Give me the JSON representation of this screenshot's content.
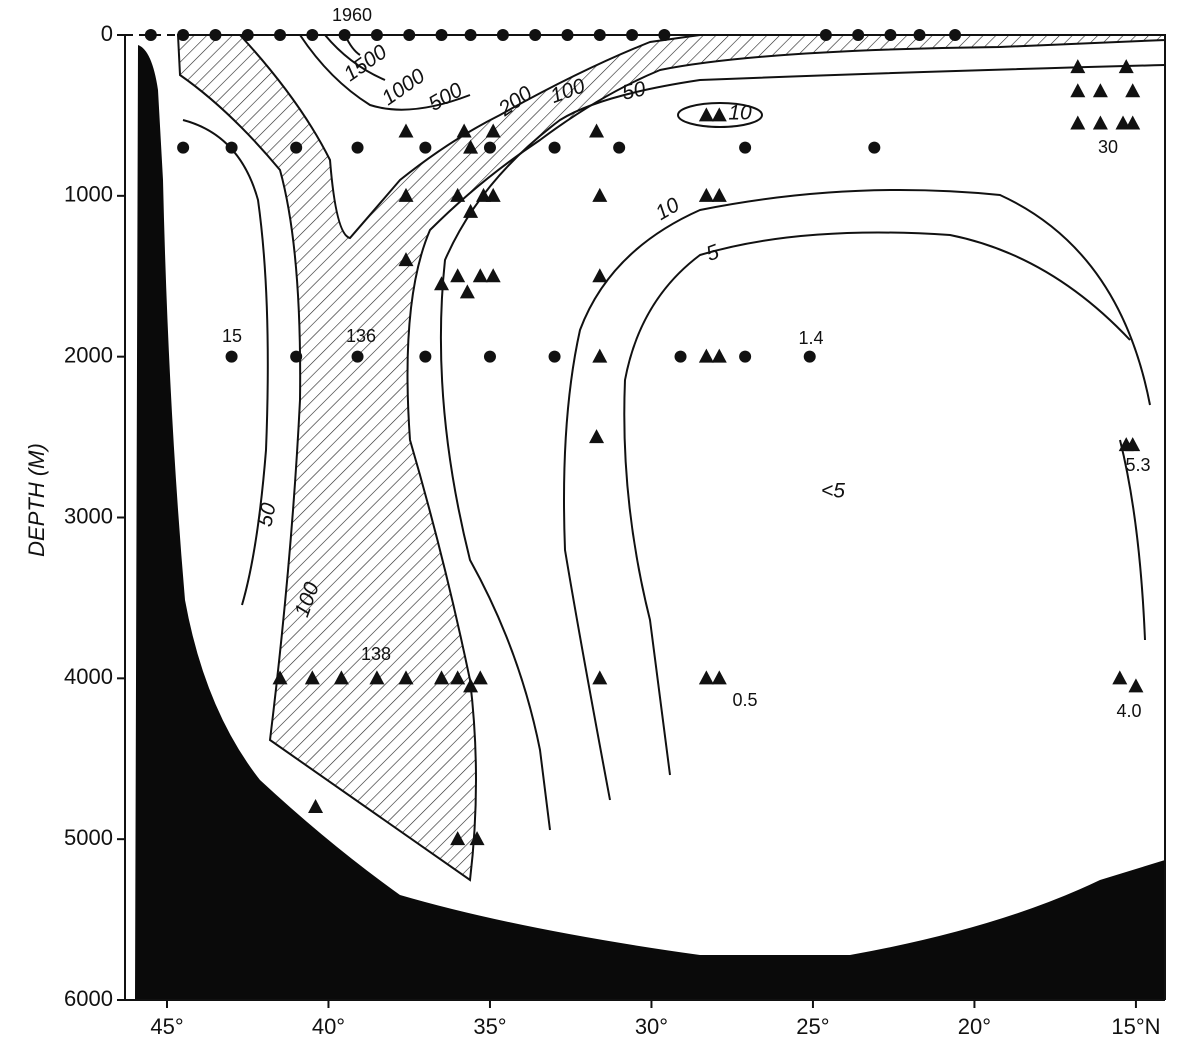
{
  "chart_data": {
    "type": "scatter",
    "y_label": "DEPTH (M)",
    "xlim": [
      46.3,
      14.1
    ],
    "ylim": [
      0,
      6000
    ],
    "invert_y": true,
    "xticks": [
      {
        "value": 45,
        "label": "45°"
      },
      {
        "value": 40,
        "label": "40°"
      },
      {
        "value": 35,
        "label": "35°"
      },
      {
        "value": 30,
        "label": "30°"
      },
      {
        "value": 25,
        "label": "25°"
      },
      {
        "value": 20,
        "label": "20°"
      },
      {
        "value": 15,
        "label": "15°N"
      }
    ],
    "yticks": [
      0,
      1000,
      2000,
      3000,
      4000,
      5000,
      6000
    ],
    "series": [
      {
        "marker": "circle",
        "color": "#111111",
        "x": [
          45.5,
          44.5,
          43.5,
          42.5,
          41.5,
          40.5,
          39.5,
          38.5,
          37.5,
          36.5,
          35.6,
          34.6,
          33.6,
          32.6,
          31.6,
          30.6,
          29.6,
          24.6,
          23.6,
          22.6,
          21.7,
          20.6,
          44.5,
          43.0,
          41.0,
          39.1,
          37.0,
          35.0,
          33.0,
          31.0,
          27.1,
          23.1,
          43.0,
          41.0,
          39.1,
          37.0,
          35.0,
          33.0,
          29.1,
          27.1,
          25.1
        ],
        "y": [
          0,
          0,
          0,
          0,
          0,
          0,
          0,
          0,
          0,
          0,
          0,
          0,
          0,
          0,
          0,
          0,
          0,
          0,
          0,
          0,
          0,
          0,
          700,
          700,
          700,
          700,
          700,
          700,
          700,
          700,
          700,
          700,
          2000,
          2000,
          2000,
          2000,
          2000,
          2000,
          2000,
          2000,
          2000
        ]
      },
      {
        "marker": "triangle",
        "color": "#111111",
        "x": [
          37.6,
          35.8,
          34.9,
          35.6,
          31.7,
          28.3,
          27.9,
          37.6,
          36.0,
          35.2,
          34.9,
          35.6,
          31.6,
          28.3,
          27.9,
          37.6,
          36.5,
          36.0,
          35.7,
          35.3,
          34.9,
          31.6,
          31.6,
          28.3,
          27.9,
          31.7,
          16.8,
          16.8,
          16.8,
          16.1,
          16.1,
          15.3,
          15.1,
          15.4,
          15.1,
          15.3,
          15.1,
          41.5,
          40.5,
          39.6,
          38.5,
          37.6,
          36.5,
          36.0,
          35.6,
          35.3,
          31.6,
          28.3,
          27.9,
          15.5,
          15.0,
          40.4,
          36.0,
          35.4
        ],
        "y": [
          600,
          600,
          600,
          700,
          600,
          500,
          500,
          1000,
          1000,
          1000,
          1000,
          1100,
          1000,
          1000,
          1000,
          1400,
          1550,
          1500,
          1600,
          1500,
          1500,
          1500,
          2000,
          2000,
          2000,
          2500,
          200,
          350,
          550,
          350,
          550,
          200,
          350,
          550,
          550,
          2550,
          2550,
          4000,
          4000,
          4000,
          4000,
          4000,
          4000,
          4000,
          4050,
          4000,
          4000,
          4000,
          4000,
          4000,
          4050,
          4800,
          5000,
          5000
        ]
      }
    ],
    "annotations": [
      "1960",
      "15",
      "136",
      "138",
      "1.4",
      "0.5",
      "4.0",
      "5.3",
      "30"
    ],
    "contour_labels": [
      "1500",
      "1000",
      "500",
      "200",
      "100",
      "50",
      "10",
      "10",
      "5",
      "50",
      "100",
      "<5"
    ]
  }
}
